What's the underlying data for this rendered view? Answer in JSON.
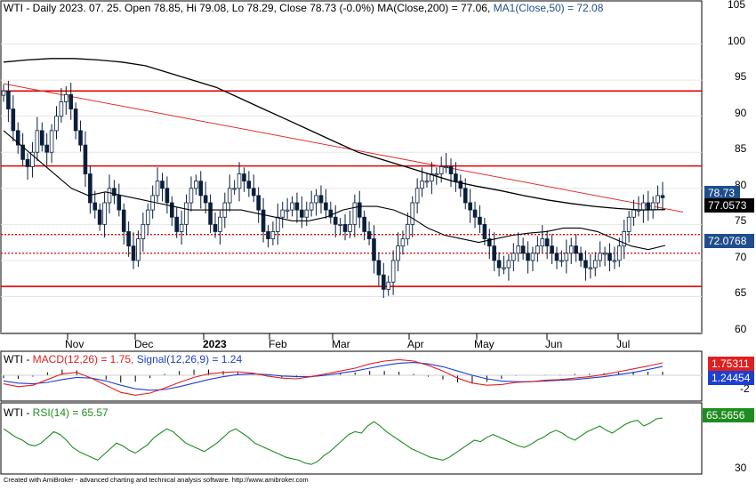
{
  "price_pane": {
    "header": {
      "prefix": "WTI - Daily 2023. 07. 25. Open 78.85, Hi 79.08, Lo 78.29, Close 78.73 (-0.0%) ",
      "ma200": "MA(Close,200) = 77.06, ",
      "ma50": "MA1(Close,50) = 72.08"
    },
    "axis_labels": [
      "105",
      "100",
      "95",
      "90",
      "85",
      "80",
      "75",
      "70",
      "65",
      "60"
    ],
    "value_boxes": [
      {
        "text": "78.73",
        "bg": "#1f4e8c",
        "fg": "#ffffff"
      },
      {
        "text": "77.0573",
        "bg": "#000000",
        "fg": "#ffffff"
      },
      {
        "text": "72.0768",
        "bg": "#1f4e8c",
        "fg": "#ffffff"
      }
    ]
  },
  "macd_pane": {
    "header": {
      "prefix": "WTI - ",
      "macd": "MACD(12,26) = 1.75, ",
      "signal": "Signal(12,26,9) = 1.24"
    },
    "axis_labels": [
      "-2"
    ],
    "value_boxes": [
      {
        "text": "1.75311",
        "bg": "#e02020",
        "fg": "#ffffff"
      },
      {
        "text": "1.24454",
        "bg": "#1f3fd0",
        "fg": "#ffffff"
      }
    ]
  },
  "rsi_pane": {
    "header": {
      "prefix": "WTI - ",
      "rsi": "RSI(14) = 65.57"
    },
    "axis_labels": [
      "30"
    ],
    "value_boxes": [
      {
        "text": "65.5656",
        "bg": "#1e8c1e",
        "fg": "#ffffff"
      }
    ]
  },
  "x_axis_labels": [
    "Nov",
    "Dec",
    "2023",
    "Feb",
    "Mar",
    "Apr",
    "May",
    "Jun",
    "Jul"
  ],
  "footer": "Created with AmiBroker - advanced charting and technical analysis software. http://www.amibroker.com",
  "colors": {
    "candle": "#0a1f3c",
    "ma200": "#000000",
    "ma50": "#000000",
    "trendline": "#e03030",
    "support": "#e00000",
    "macd": "#e02020",
    "signal": "#1f3fd0",
    "rsi": "#1e8c1e"
  },
  "chart_data": [
    {
      "type": "candlestick",
      "title": "WTI - Daily",
      "ylim": [
        58,
        106
      ],
      "ma200_final": 77.06,
      "ma50_final": 72.08,
      "last_bar": {
        "date": "2023-07-25",
        "open": 78.85,
        "high": 79.08,
        "low": 78.29,
        "close": 78.73
      },
      "horizontal_lines": [
        {
          "value": 93.5,
          "style": "solid"
        },
        {
          "value": 83.1,
          "style": "solid"
        },
        {
          "value": 73.6,
          "style": "dotted"
        },
        {
          "value": 71.0,
          "style": "dotted"
        },
        {
          "value": 66.4,
          "style": "solid"
        }
      ],
      "trendline": {
        "start_value": 94.5,
        "end_value": 77.2
      },
      "close_series": [
        93.5,
        91,
        88,
        86,
        84,
        83,
        85,
        88,
        86,
        85,
        88,
        90,
        92,
        93,
        91,
        88,
        86,
        82,
        78,
        77,
        75,
        78,
        80,
        79,
        77,
        74,
        72,
        70,
        73,
        75,
        77,
        79,
        81,
        80,
        78,
        76,
        74,
        75,
        78,
        80,
        81,
        79,
        78,
        75,
        74,
        76,
        78,
        80,
        80,
        82,
        81,
        80,
        79,
        77,
        74,
        73,
        74,
        76,
        77,
        77,
        78,
        77,
        76,
        77,
        78,
        79,
        78,
        77,
        76,
        75,
        75,
        74,
        75,
        78,
        76,
        74,
        73,
        70,
        68,
        66,
        67,
        70,
        72,
        73,
        75,
        78,
        80,
        81,
        81,
        82,
        82,
        83,
        83,
        82,
        81,
        80,
        78,
        77,
        76,
        75,
        73,
        72,
        70,
        69,
        69,
        70,
        71,
        72,
        71,
        70,
        71,
        72,
        73,
        72,
        71,
        70,
        70,
        71,
        72,
        71,
        70,
        69,
        69,
        70,
        71,
        71,
        70,
        70,
        72,
        74,
        76,
        77,
        77,
        78,
        77,
        78,
        79,
        78.7
      ],
      "ma200_series": [
        97.5,
        97.8,
        98,
        98,
        97.8,
        97.5,
        97,
        96,
        95,
        94,
        92.5,
        91,
        89.5,
        88,
        86.5,
        85,
        84,
        83,
        82,
        81,
        80.3,
        79.7,
        79,
        78.4,
        77.9,
        77.5,
        77.2,
        77.0,
        77.06
      ],
      "ma50_series": [
        88,
        86,
        84,
        82,
        80,
        79,
        79.5,
        79,
        78.5,
        78,
        77.5,
        77,
        77,
        77,
        77,
        76.5,
        76,
        75.5,
        75.5,
        76,
        77,
        77.5,
        77.5,
        77,
        76,
        74.5,
        73.5,
        73,
        72.5,
        73,
        73.5,
        73.8,
        74,
        74.5,
        74.5,
        74,
        73,
        72,
        71.5,
        72.08
      ]
    },
    {
      "type": "line",
      "title": "MACD(12,26)",
      "series": [
        {
          "name": "MACD(12,26)",
          "values": [
            -1.2,
            -1.6,
            -1.4,
            -0.6,
            0.2,
            0.4,
            -0.4,
            -1.4,
            -2.4,
            -2.8,
            -2.5,
            -1.8,
            -1.0,
            -0.3,
            0.2,
            0.4,
            0.5,
            0.3,
            -0.1,
            -0.4,
            -0.5,
            -0.2,
            0.2,
            0.6,
            1.0,
            1.6,
            2.0,
            2.2,
            2.0,
            1.4,
            0.6,
            -0.4,
            -1.1,
            -1.4,
            -1.3,
            -1.0,
            -0.9,
            -0.7,
            -0.6,
            -0.4,
            -0.2,
            0.1,
            0.5,
            0.9,
            1.3,
            1.75
          ]
        },
        {
          "name": "Signal(12,26,9)",
          "values": [
            -0.8,
            -1.1,
            -1.2,
            -1.0,
            -0.6,
            -0.3,
            -0.4,
            -0.8,
            -1.4,
            -1.9,
            -2.1,
            -2.0,
            -1.6,
            -1.1,
            -0.6,
            -0.2,
            0.1,
            0.2,
            0.1,
            -0.1,
            -0.2,
            -0.2,
            0.0,
            0.3,
            0.6,
            1.0,
            1.4,
            1.7,
            1.8,
            1.6,
            1.2,
            0.6,
            0.0,
            -0.5,
            -0.8,
            -0.9,
            -0.9,
            -0.8,
            -0.7,
            -0.6,
            -0.4,
            -0.2,
            0.1,
            0.4,
            0.8,
            1.24
          ]
        }
      ]
    },
    {
      "type": "line",
      "title": "RSI(14)",
      "series": [
        {
          "name": "RSI(14)",
          "values": [
            58,
            55,
            52,
            50,
            47,
            46,
            48,
            52,
            56,
            54,
            50,
            45,
            42,
            40,
            38,
            36,
            40,
            44,
            48,
            46,
            43,
            41,
            44,
            47,
            52,
            55,
            58,
            56,
            52,
            48,
            46,
            44,
            42,
            45,
            48,
            52,
            56,
            58,
            55,
            52,
            48,
            46,
            44,
            42,
            40,
            38,
            37,
            36,
            34,
            33,
            35,
            39,
            42,
            46,
            50,
            54,
            56,
            55,
            60,
            63,
            60,
            56,
            53,
            50,
            47,
            44,
            42,
            40,
            38,
            37,
            36,
            38,
            41,
            44,
            47,
            50,
            49,
            52,
            54,
            52,
            50,
            48,
            46,
            45,
            47,
            50,
            52,
            55,
            57,
            55,
            52,
            50,
            53,
            56,
            58,
            60,
            57,
            55,
            58,
            61,
            63,
            64,
            60,
            62,
            65,
            65.57
          ]
        }
      ]
    }
  ]
}
